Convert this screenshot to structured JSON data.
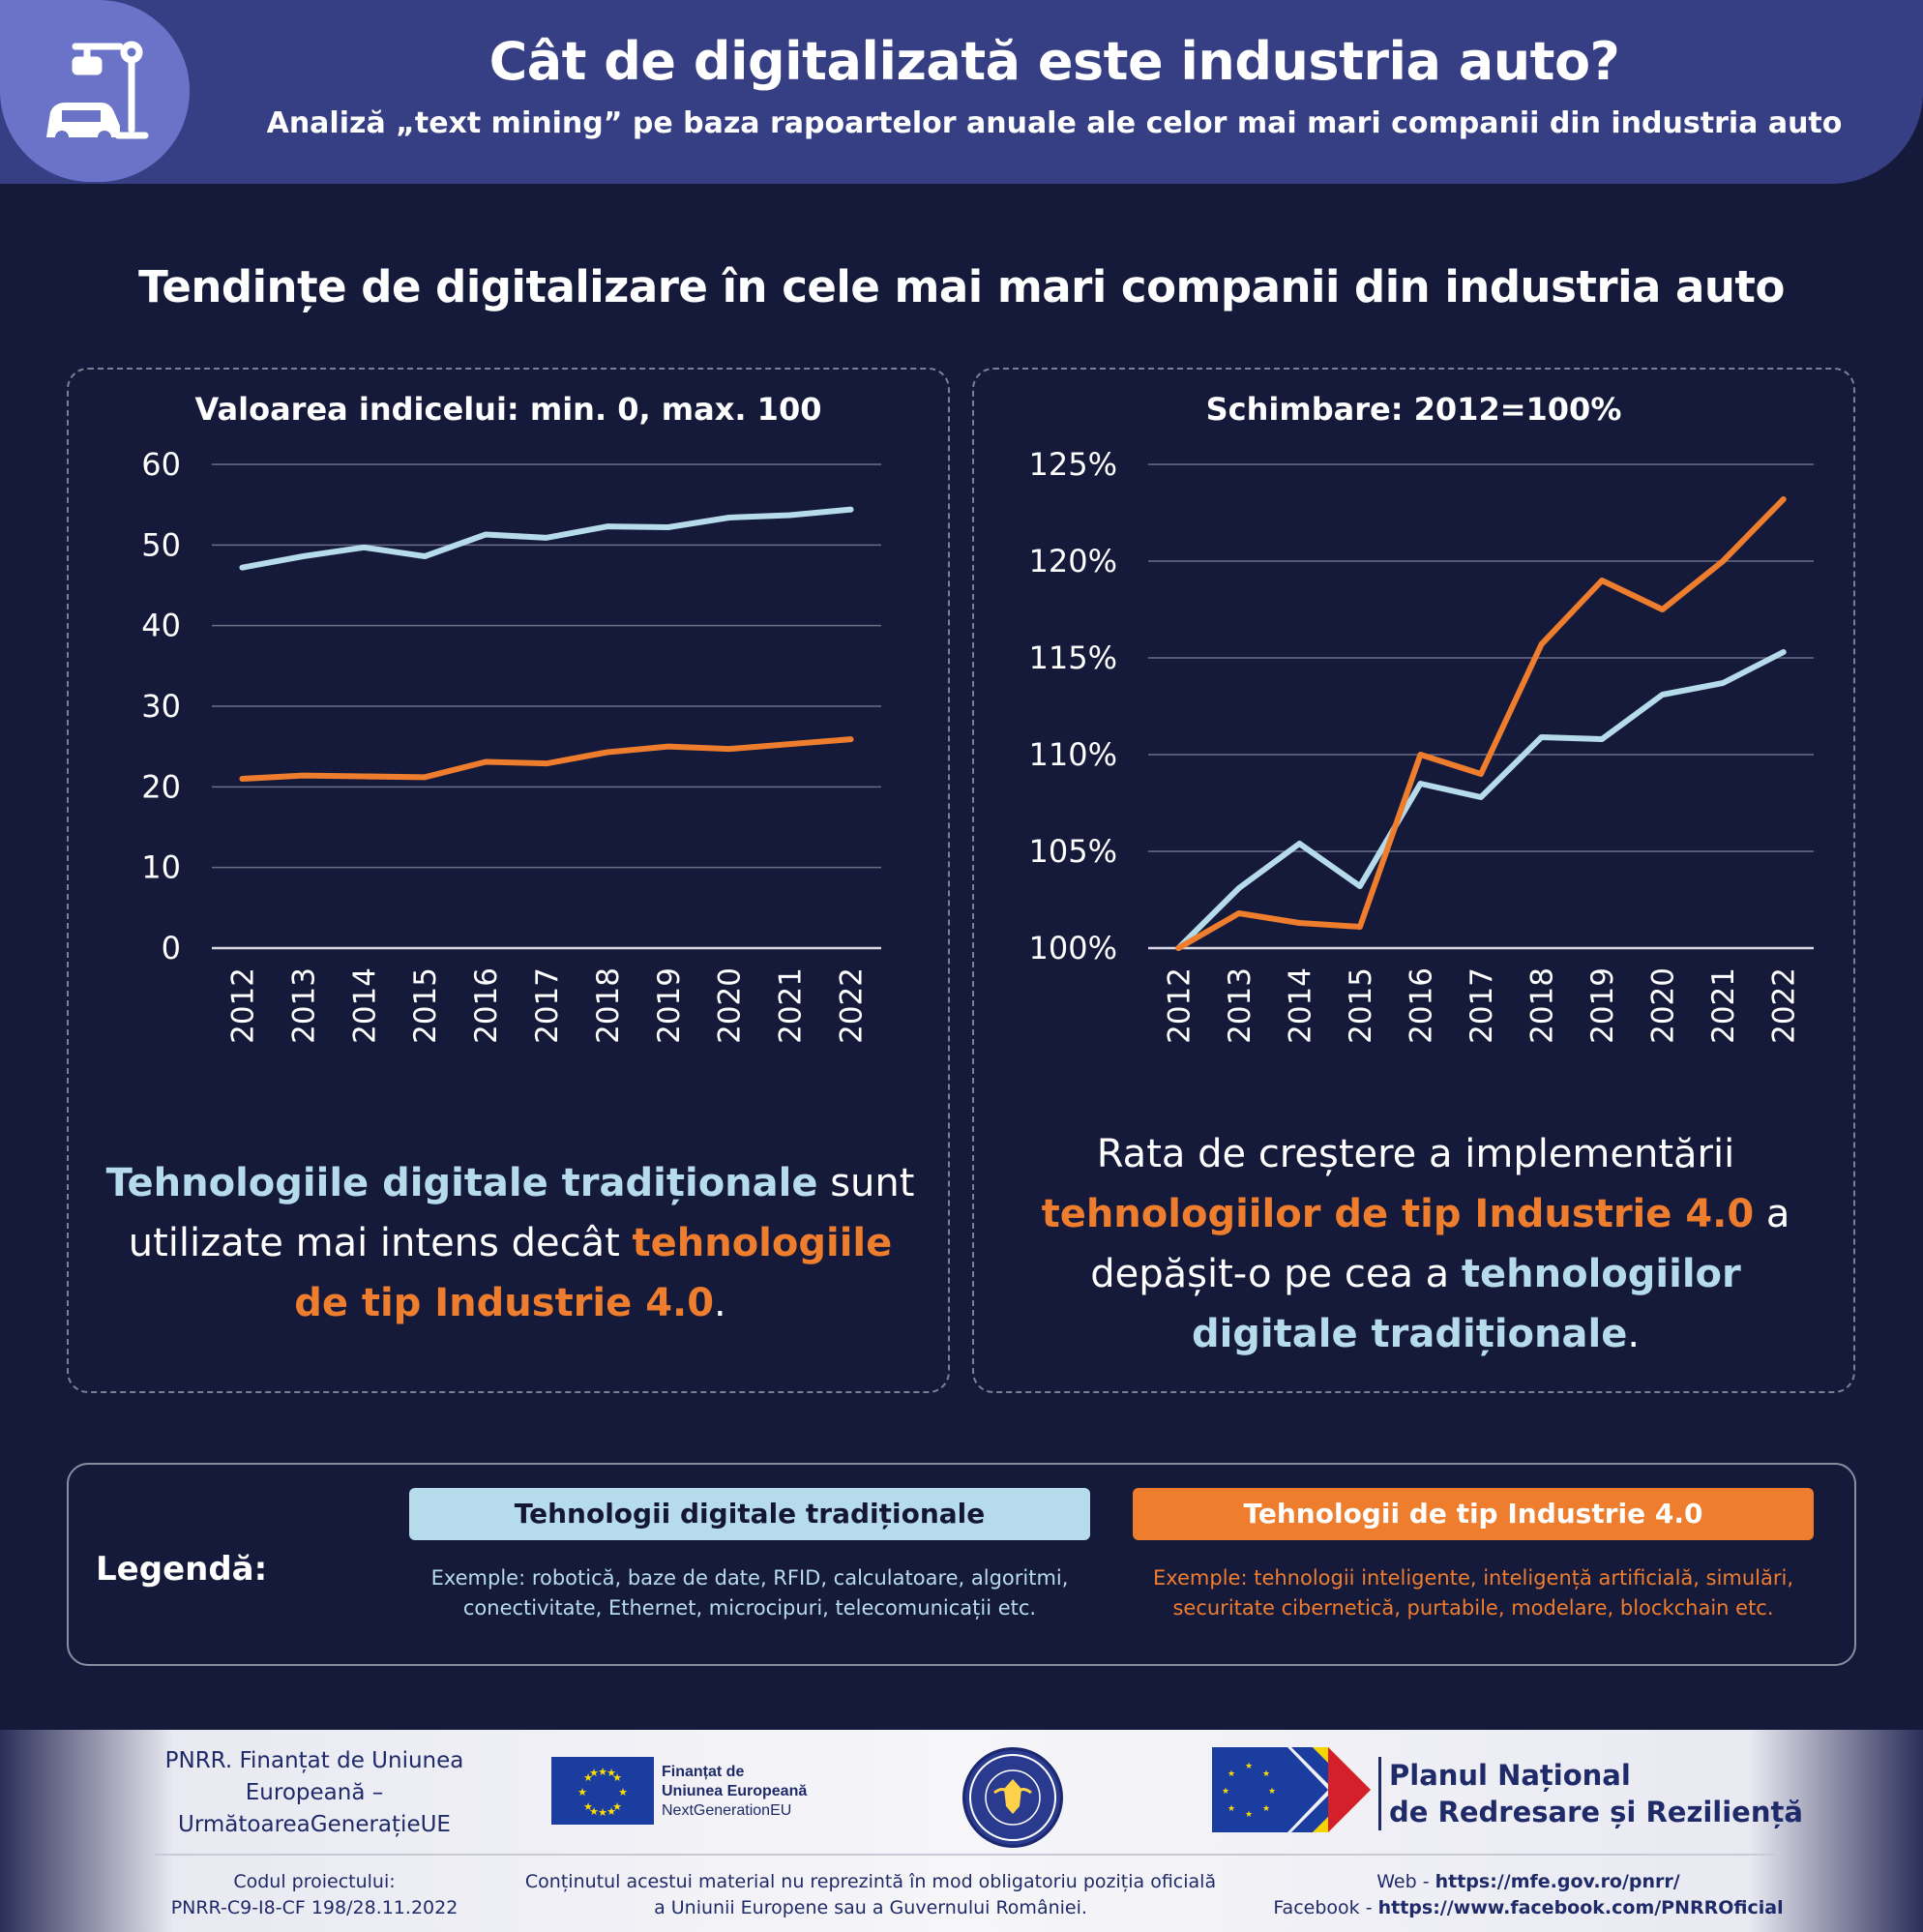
{
  "header": {
    "title": "Cât de digitalizată este industria auto?",
    "subtitle": "Analiză „text mining” pe baza rapoartelor anuale ale celor mai mari companii din industria auto",
    "icon": "car-factory-robot-icon"
  },
  "section_title": "Tendințe de digitalizare în cele mai mari companii din industria auto",
  "colors": {
    "traditional": "#b6dcec",
    "industry40": "#ee7d2e",
    "background": "#161a3a",
    "header": "#363e84"
  },
  "left_panel": {
    "subtitle": "Valoarea indicelui: min. 0, max. 100",
    "text": {
      "p1": "Tehnologiile digitale tradiționale",
      "p2": " sunt utilizate mai intens decât ",
      "p3": "tehnologiile de tip Industrie 4.0",
      "p4": "."
    }
  },
  "right_panel": {
    "subtitle": "Schimbare: 2012=100%",
    "text": {
      "p1": "Rata de creștere a implementării ",
      "p2": "tehnologiilor de tip Industrie 4.0",
      "p3": " a depășit-o pe cea a ",
      "p4": "tehnologiilor digitale tradiționale",
      "p5": "."
    }
  },
  "chart_data": [
    {
      "type": "line",
      "x": [
        "2012",
        "2013",
        "2014",
        "2015",
        "2016",
        "2017",
        "2018",
        "2019",
        "2020",
        "2021",
        "2022"
      ],
      "ylim": [
        0,
        60
      ],
      "yticks": [
        "0",
        "10",
        "20",
        "30",
        "40",
        "50",
        "60"
      ],
      "grid": true,
      "series": [
        {
          "name": "Tehnologii digitale tradiționale",
          "color": "#b6dcec",
          "values": [
            47.2,
            48.6,
            49.7,
            48.6,
            51.3,
            50.9,
            52.3,
            52.2,
            53.4,
            53.7,
            54.4
          ]
        },
        {
          "name": "Tehnologii de tip Industrie 4.0",
          "color": "#ee7d2e",
          "values": [
            21.0,
            21.4,
            21.3,
            21.2,
            23.1,
            22.9,
            24.3,
            25.0,
            24.7,
            25.3,
            25.9
          ]
        }
      ]
    },
    {
      "type": "line",
      "x": [
        "2012",
        "2013",
        "2014",
        "2015",
        "2016",
        "2017",
        "2018",
        "2019",
        "2020",
        "2021",
        "2022"
      ],
      "ylim": [
        100,
        125
      ],
      "yticks": [
        "100%",
        "105%",
        "110%",
        "115%",
        "120%",
        "125%"
      ],
      "grid": true,
      "series": [
        {
          "name": "Tehnologii digitale tradiționale",
          "color": "#b6dcec",
          "values": [
            100.0,
            103.1,
            105.4,
            103.2,
            108.5,
            107.8,
            110.9,
            110.8,
            113.1,
            113.7,
            115.3
          ]
        },
        {
          "name": "Tehnologii de tip Industrie 4.0",
          "color": "#ee7d2e",
          "values": [
            100.0,
            101.8,
            101.3,
            101.1,
            110.0,
            109.0,
            115.7,
            119.0,
            117.5,
            120.0,
            123.2
          ]
        }
      ]
    }
  ],
  "legend": {
    "label": "Legendă:",
    "traditional": {
      "name": "Tehnologii digitale tradiționale",
      "examples": "Exemple: robotică, baze de date, RFID, calculatoare, algoritmi, conectivitate, Ethernet, microcipuri, telecomunicații etc."
    },
    "industry40": {
      "name": "Tehnologii de tip Industrie 4.0",
      "examples": "Exemple: tehnologii inteligente, inteligență artificială, simulări, securitate cibernetică, purtabile, modelare, blockchain etc."
    }
  },
  "footer": {
    "pnrr_funding": "PNRR. Finanțat de Uniunea Europeană – UrmătoareaGenerațieUE",
    "eu_line1": "Finanțat de",
    "eu_line2": "Uniunea Europeană",
    "eu_line3": "NextGenerationEU",
    "plan_line1": "Planul Național",
    "plan_line2": "de Redresare și Reziliență",
    "code_label": "Codul proiectului:",
    "code_value": "PNRR-C9-I8-CF 198/28.11.2022",
    "disclaimer": "Conținutul acestui material nu reprezintă în mod obligatoriu poziția oficială a Uniunii Europene sau a Guvernului României.",
    "web_label": "Web - ",
    "web_url": "https://mfe.gov.ro/pnrr/",
    "fb_label": "Facebook - ",
    "fb_url": "https://www.facebook.com/PNRROficial",
    "seal_text": "GUVERNUL ROMÂNIEI"
  }
}
